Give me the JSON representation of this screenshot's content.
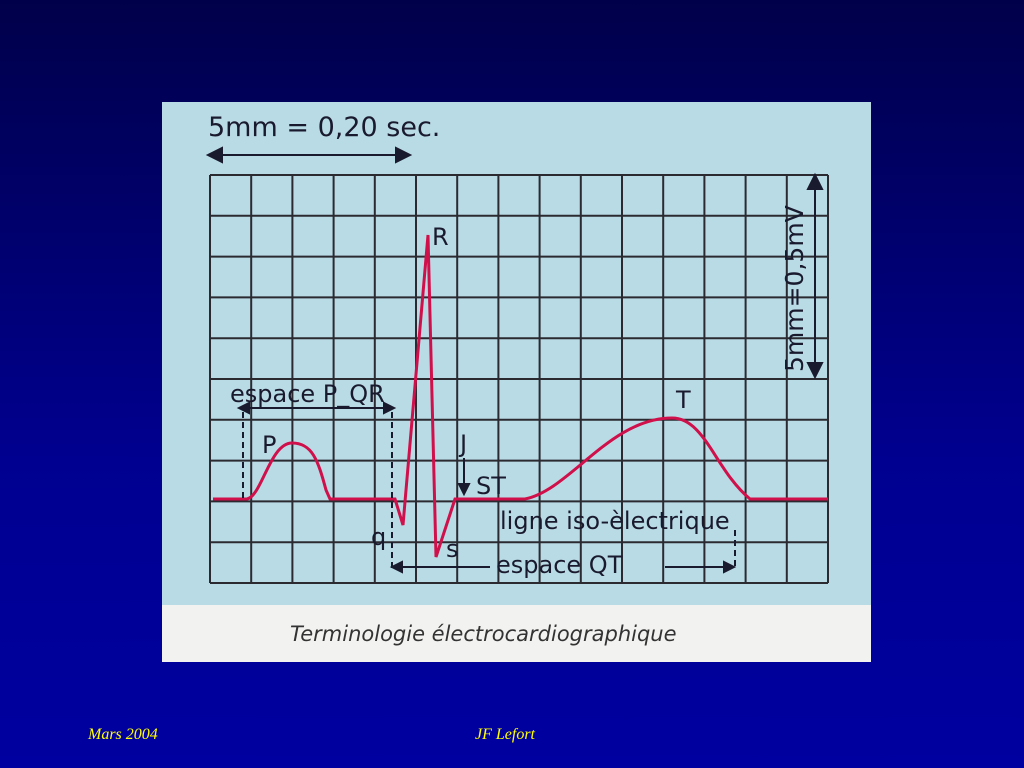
{
  "figure": {
    "scale_time": "5mm = 0,20 sec.",
    "scale_voltage": "5mm=0,5mV",
    "labels": {
      "r": "R",
      "p": "P",
      "t": "T",
      "j": "J",
      "st": "ST",
      "q": "q",
      "s": "s",
      "pqr_interval": "espace P_QR",
      "isoelectric_line": "ligne iso-èlectrique",
      "qt_interval": "espace QT"
    },
    "caption": "Terminologie électrocardiographique"
  },
  "footer": {
    "date": "Mars 2004",
    "author": "JF Lefort"
  }
}
